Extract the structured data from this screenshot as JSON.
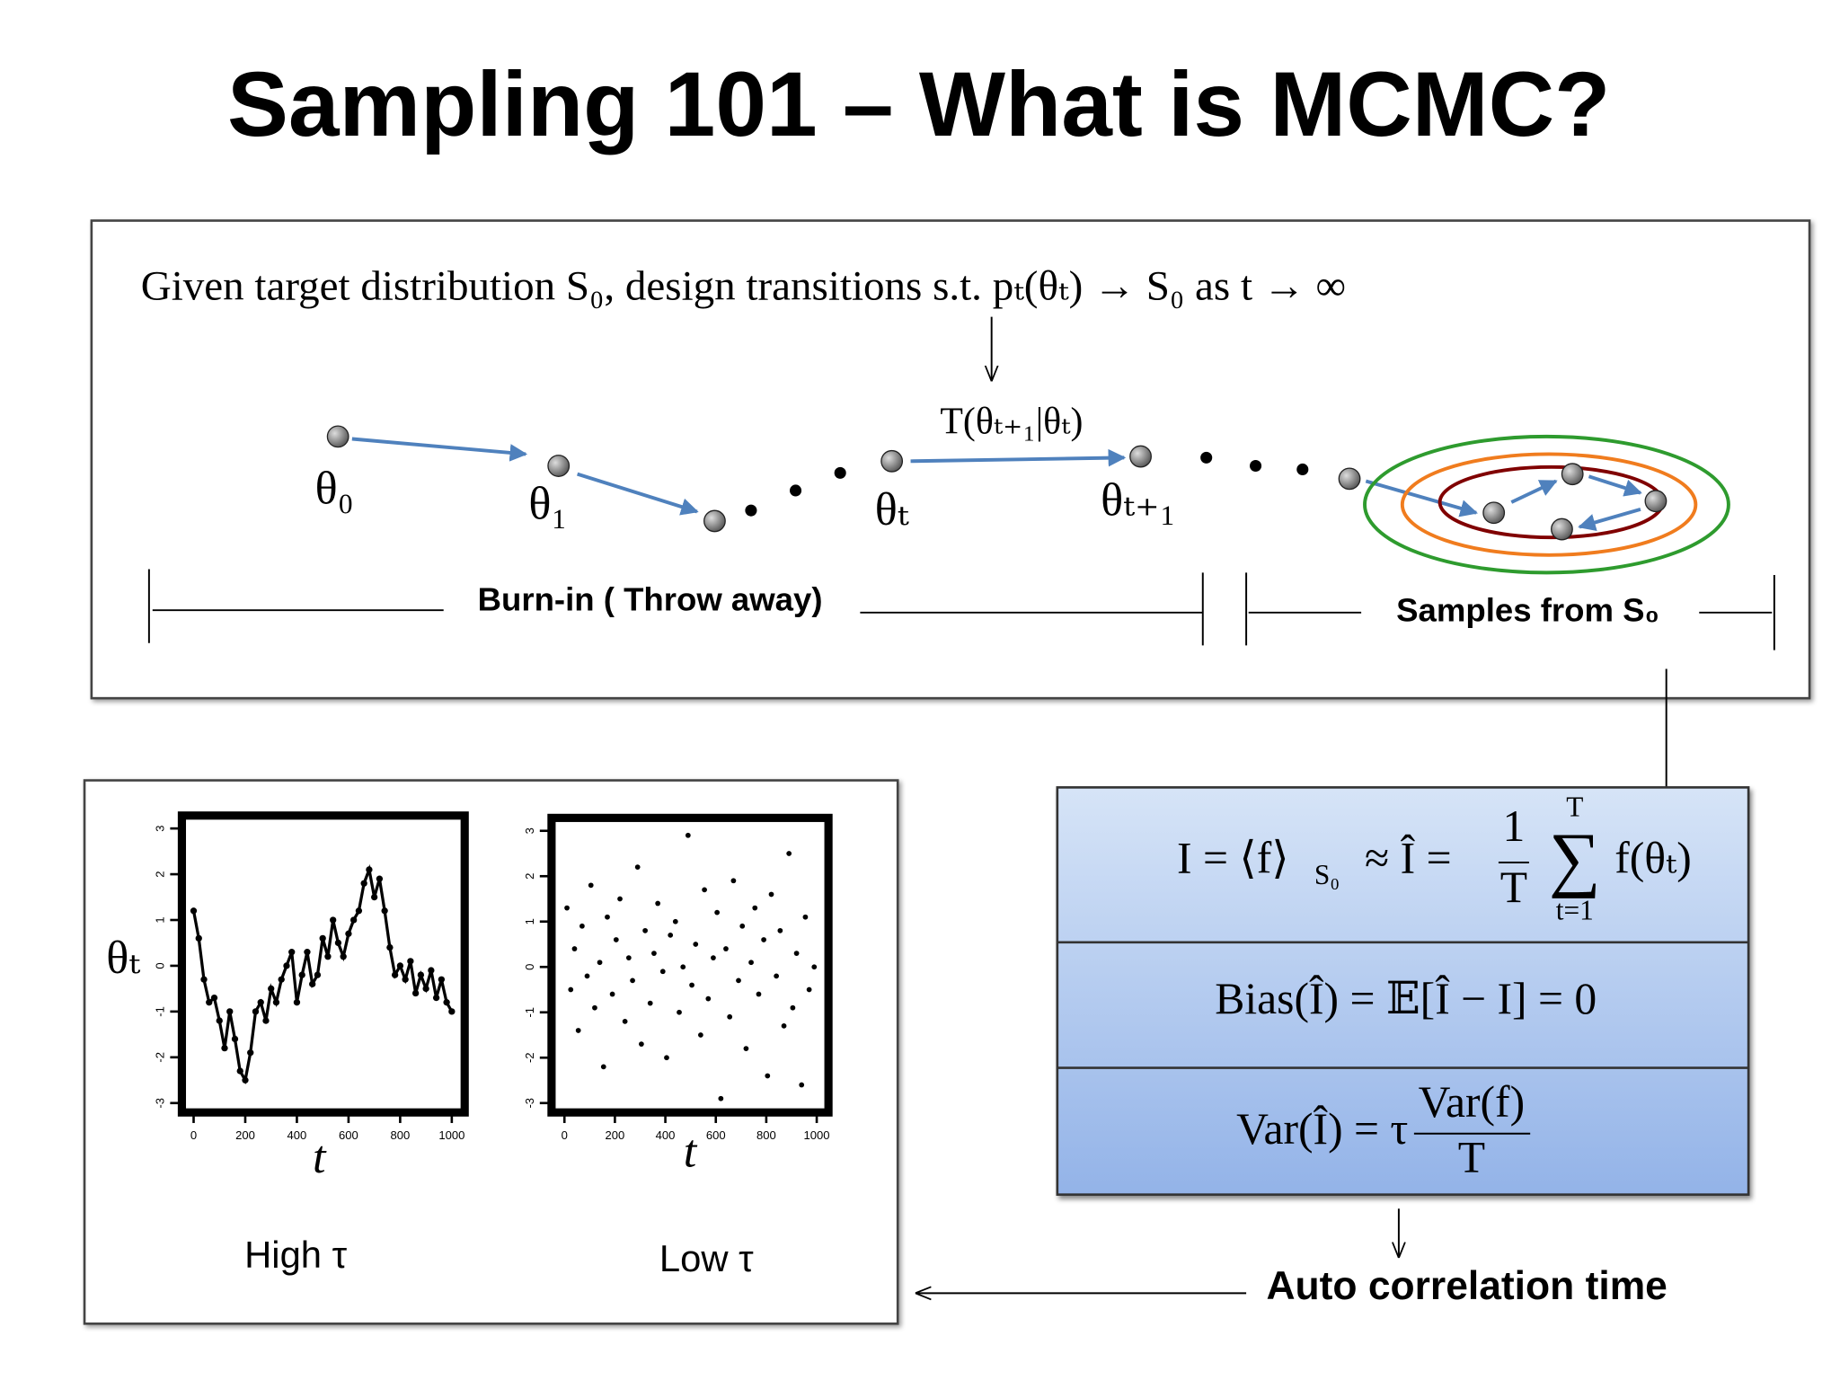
{
  "header": {
    "title": "Sampling 101 – What is MCMC?"
  },
  "intro": {
    "statement": "Given target distribution S₀, design transitions s.t. pₜ(θₜ) → S₀ as t → ∞"
  },
  "diagram": {
    "transition": "T(θₜ₊₁|θₜ)",
    "states": [
      "θ₀",
      "θ₁",
      "θₜ",
      "θₜ₊₁"
    ],
    "burn_in": "Burn-in ( Throw away)",
    "samples": "Samples from S₀"
  },
  "plots": [
    {
      "type": "line",
      "ylabel": "θₜ",
      "xlabel": "t",
      "caption": "High τ",
      "x": [
        0,
        20,
        40,
        60,
        80,
        100,
        120,
        140,
        160,
        180,
        200,
        220,
        240,
        260,
        280,
        300,
        320,
        340,
        360,
        380,
        400,
        420,
        440,
        460,
        480,
        500,
        520,
        540,
        560,
        580,
        600,
        620,
        640,
        660,
        680,
        700,
        720,
        740,
        760,
        780,
        800,
        820,
        840,
        860,
        880,
        900,
        920,
        940,
        960,
        980,
        1000
      ],
      "values": [
        1.2,
        0.6,
        -0.3,
        -0.8,
        -0.7,
        -1.2,
        -1.8,
        -1.0,
        -1.6,
        -2.3,
        -2.5,
        -1.9,
        -1.0,
        -0.8,
        -1.2,
        -0.5,
        -0.8,
        -0.3,
        0.0,
        0.3,
        -0.8,
        -0.2,
        0.3,
        -0.4,
        -0.2,
        0.6,
        0.2,
        1.0,
        0.5,
        0.2,
        0.7,
        1.0,
        1.2,
        1.8,
        2.1,
        1.5,
        1.9,
        1.2,
        0.4,
        -0.2,
        0.0,
        -0.3,
        0.1,
        -0.6,
        -0.2,
        -0.5,
        -0.1,
        -0.7,
        -0.3,
        -0.8,
        -1.0
      ],
      "xlim": [
        0,
        1000
      ],
      "ylim": [
        -3,
        3
      ],
      "xticks": [
        0,
        200,
        400,
        600,
        800,
        1000
      ],
      "yticks": [
        -3,
        -2,
        -1,
        0,
        1,
        2,
        3
      ]
    },
    {
      "type": "scatter",
      "xlabel": "t",
      "caption": "Low  τ",
      "x": [
        10,
        25,
        40,
        55,
        70,
        90,
        105,
        120,
        140,
        155,
        170,
        190,
        205,
        220,
        240,
        255,
        270,
        290,
        305,
        320,
        340,
        355,
        370,
        390,
        405,
        420,
        440,
        455,
        470,
        490,
        505,
        520,
        540,
        555,
        570,
        590,
        605,
        620,
        640,
        655,
        670,
        690,
        705,
        720,
        740,
        755,
        770,
        790,
        805,
        820,
        840,
        855,
        870,
        890,
        905,
        920,
        940,
        955,
        970,
        990
      ],
      "values": [
        1.3,
        -0.5,
        0.4,
        -1.4,
        0.9,
        -0.2,
        1.8,
        -0.9,
        0.1,
        -2.2,
        1.1,
        -0.6,
        0.6,
        1.5,
        -1.2,
        0.2,
        -0.3,
        2.2,
        -1.7,
        0.8,
        -0.8,
        0.3,
        1.4,
        -0.1,
        -2.0,
        0.7,
        1.0,
        -1.0,
        0.0,
        2.9,
        -0.4,
        0.5,
        -1.5,
        1.7,
        -0.7,
        0.2,
        1.2,
        -2.9,
        0.4,
        -1.1,
        1.9,
        -0.3,
        0.9,
        -1.8,
        0.1,
        1.3,
        -0.6,
        0.6,
        -2.4,
        1.6,
        -0.2,
        0.8,
        -1.3,
        2.5,
        -0.9,
        0.3,
        -2.6,
        1.1,
        -0.5,
        0.0
      ],
      "xlim": [
        0,
        1000
      ],
      "ylim": [
        -3,
        3
      ],
      "xticks": [
        0,
        200,
        400,
        600,
        800,
        1000
      ],
      "yticks": [
        -3,
        -2,
        -1,
        0,
        1,
        2,
        3
      ]
    }
  ],
  "estimators": {
    "mean": {
      "lhs": "I = ⟨f⟩",
      "lhs_sub": "S₀",
      "approx": "≈ Î =",
      "numerator": "1",
      "denominator": "T",
      "sum": "∑",
      "upper": "T",
      "lower": "t=1",
      "summand": "f(θₜ)"
    },
    "bias": "Bias(Î) = 𝔼[Î − I] = 0",
    "variance": {
      "lhs": "Var(Î) = τ",
      "numerator": "Var(f)",
      "denominator": "T"
    }
  },
  "note": "Auto correlation time"
}
